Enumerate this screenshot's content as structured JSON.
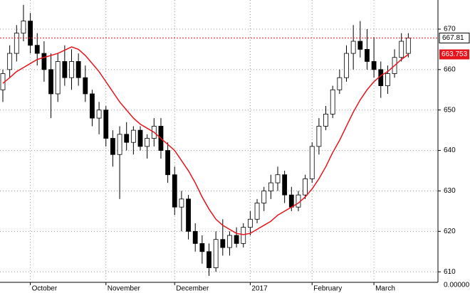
{
  "chart_data": {
    "type": "candlestick",
    "open": [
      655,
      660,
      664,
      669,
      672,
      666,
      664,
      660,
      654,
      662,
      658,
      662,
      658,
      654,
      648,
      650,
      643,
      639,
      644,
      642,
      645,
      641,
      643,
      646,
      640,
      634,
      626,
      628,
      620,
      617,
      615,
      611,
      618,
      616,
      619,
      617,
      621,
      623,
      627,
      630,
      632,
      634,
      629,
      626,
      629,
      633,
      641,
      646,
      649,
      655,
      658,
      664,
      667,
      665,
      662,
      660,
      656,
      659,
      663,
      664
    ],
    "high": [
      660,
      666,
      671,
      676,
      674,
      669,
      667,
      664,
      664,
      666,
      665,
      664,
      661,
      655,
      652,
      651,
      645,
      646,
      647,
      646,
      646,
      644,
      648,
      648,
      642,
      636,
      630,
      629,
      622,
      619,
      617,
      620,
      623,
      620,
      621,
      622,
      625,
      628,
      631,
      634,
      636,
      635,
      631,
      630,
      634,
      642,
      648,
      651,
      656,
      660,
      666,
      671,
      672,
      670,
      668,
      662,
      661,
      665,
      669,
      669
    ],
    "low": [
      652,
      658,
      662,
      667,
      664,
      661,
      657,
      648,
      652,
      656,
      655,
      656,
      652,
      646,
      644,
      641,
      636,
      628,
      640,
      639,
      640,
      638,
      641,
      638,
      632,
      624,
      620,
      618,
      615,
      612,
      609,
      610,
      614,
      614,
      616,
      616,
      619,
      622,
      625,
      628,
      630,
      627,
      625,
      625,
      628,
      632,
      639,
      645,
      648,
      654,
      657,
      660,
      663,
      660,
      658,
      653,
      654,
      658,
      662,
      663
    ],
    "close": [
      659,
      664,
      669,
      672,
      666,
      664,
      660,
      654,
      662,
      658,
      662,
      658,
      654,
      648,
      650,
      643,
      639,
      644,
      642,
      645,
      641,
      643,
      646,
      640,
      634,
      626,
      628,
      620,
      617,
      615,
      611,
      618,
      616,
      619,
      617,
      621,
      623,
      627,
      630,
      632,
      634,
      629,
      626,
      629,
      633,
      641,
      646,
      649,
      655,
      658,
      664,
      667,
      665,
      662,
      660,
      656,
      659,
      663,
      667,
      667.81
    ],
    "up_color": "#ffffff",
    "down_color": "#000000",
    "ma": {
      "color": "#e8141c",
      "values": [
        656.6,
        658,
        659.5,
        660.5,
        661.5,
        662.5,
        663,
        663.5,
        664,
        664.8,
        665.6,
        665,
        663.5,
        661.5,
        659.5,
        657,
        654.5,
        652,
        650,
        648,
        646.5,
        645.5,
        644.5,
        643,
        641.5,
        640,
        637.5,
        635,
        632,
        628.5,
        625.5,
        623,
        621.5,
        620.5,
        619.5,
        619.2,
        619.5,
        620.5,
        621.5,
        622.5,
        624,
        625,
        626,
        627,
        628.5,
        630.5,
        633,
        636,
        639.5,
        642.5,
        646,
        649.5,
        652.5,
        655,
        657,
        658.5,
        659.5,
        661,
        662.5,
        663.753
      ]
    },
    "hline": {
      "value": 667.81,
      "color": "#e8141c"
    },
    "ylim": [
      607.4,
      677.2
    ],
    "yticks": [
      610,
      620,
      630,
      640,
      650,
      660,
      670
    ],
    "bottom_label": "0.00000",
    "xticks": [
      {
        "value": 4,
        "label": "October"
      },
      {
        "value": 15,
        "label": "November"
      },
      {
        "value": 25,
        "label": "December"
      },
      {
        "value": 36,
        "label": "2017"
      },
      {
        "value": 45,
        "label": "February"
      },
      {
        "value": 54,
        "label": "March"
      }
    ],
    "grid": true
  }
}
